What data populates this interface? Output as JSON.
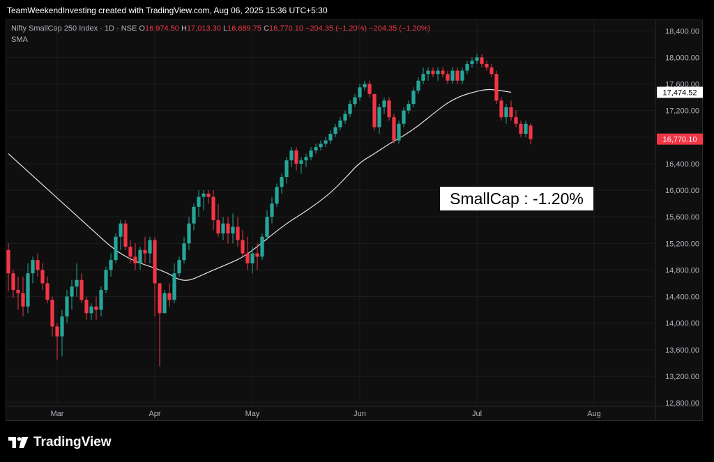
{
  "header": {
    "title": "TeamWeekendInvesting created with TradingView.com, Aug 06, 2025 15:36 UTC+5:30"
  },
  "legend": {
    "symbol": "Nifty SmallCap 250 Index · 1D · NSE",
    "open_label": "O",
    "open": "16,974.50",
    "high_label": "H",
    "high": "17,013.30",
    "low_label": "L",
    "low": "16,689.75",
    "close_label": "C",
    "close": "16,770.10",
    "change": "−204.35 (−1.20%)",
    "sma_change": "−204.35 (−1.20%)",
    "sma_label": "SMA"
  },
  "annotation": "SmallCap : -1.20%",
  "brand": "TradingView",
  "colors": {
    "up": "#26a69a",
    "down": "#f23645",
    "sma": "#e6e6e6",
    "background": "#0f0f0f"
  },
  "chart_data": {
    "type": "candlestick",
    "y_ticks": [
      "18,400.00",
      "18,000.00",
      "17,600.00",
      "17,200.00",
      "16,800.00",
      "16,400.00",
      "16,000.00",
      "15,600.00",
      "15,200.00",
      "14,800.00",
      "14,400.00",
      "14,000.00",
      "13,600.00",
      "13,200.00",
      "12,800.00"
    ],
    "y_tick_values": [
      18400,
      18000,
      17600,
      17200,
      16800,
      16400,
      16000,
      15600,
      15200,
      14800,
      14400,
      14000,
      13600,
      13200,
      12800
    ],
    "x_ticks": [
      "Mar",
      "Apr",
      "May",
      "Jun",
      "Jul",
      "Aug"
    ],
    "x_tick_index": [
      10,
      30,
      50,
      72,
      96,
      120
    ],
    "ylim": [
      12780,
      18560
    ],
    "sma_price_label": "17,474.52",
    "sma_price": 17474.52,
    "last_price_label": "16,770.10",
    "last_price": 16770.1,
    "candles": [
      [
        15100,
        15200,
        14480,
        14750
      ],
      [
        14750,
        14800,
        14380,
        14500
      ],
      [
        14500,
        14700,
        14200,
        14450
      ],
      [
        14450,
        14700,
        14100,
        14250
      ],
      [
        14250,
        14900,
        14150,
        14750
      ],
      [
        14750,
        15000,
        14600,
        14950
      ],
      [
        14950,
        15050,
        14700,
        14800
      ],
      [
        14800,
        14900,
        14500,
        14600
      ],
      [
        14600,
        14700,
        14300,
        14350
      ],
      [
        14350,
        14400,
        13800,
        13950
      ],
      [
        13950,
        14000,
        13450,
        13800
      ],
      [
        13800,
        14200,
        13500,
        14100
      ],
      [
        14100,
        14500,
        14000,
        14400
      ],
      [
        14400,
        14650,
        14200,
        14550
      ],
      [
        14550,
        14900,
        14400,
        14650
      ],
      [
        14650,
        14750,
        14300,
        14350
      ],
      [
        14350,
        14400,
        14050,
        14150
      ],
      [
        14150,
        14300,
        14050,
        14250
      ],
      [
        14250,
        14400,
        14050,
        14200
      ],
      [
        14200,
        14550,
        14100,
        14500
      ],
      [
        14500,
        14850,
        14450,
        14800
      ],
      [
        14800,
        15050,
        14700,
        14950
      ],
      [
        14950,
        15350,
        14900,
        15300
      ],
      [
        15300,
        15550,
        15100,
        15500
      ],
      [
        15500,
        15550,
        15100,
        15150
      ],
      [
        15150,
        15250,
        14900,
        15000
      ],
      [
        15000,
        15200,
        14800,
        14900
      ],
      [
        14900,
        15150,
        14800,
        15100
      ],
      [
        15100,
        15300,
        14900,
        15050
      ],
      [
        15050,
        15300,
        14900,
        15250
      ],
      [
        15250,
        15300,
        14100,
        14600
      ],
      [
        14600,
        14600,
        13350,
        14150
      ],
      [
        14150,
        14500,
        14200,
        14450
      ],
      [
        14450,
        14600,
        14250,
        14350
      ],
      [
        14350,
        14900,
        14300,
        14750
      ],
      [
        14750,
        15000,
        14700,
        14950
      ],
      [
        14950,
        15300,
        14900,
        15200
      ],
      [
        15200,
        15600,
        15100,
        15500
      ],
      [
        15500,
        15800,
        15400,
        15750
      ],
      [
        15750,
        16000,
        15600,
        15900
      ],
      [
        15900,
        16000,
        15700,
        15950
      ],
      [
        15950,
        16000,
        15800,
        15900
      ],
      [
        15900,
        16000,
        15400,
        15550
      ],
      [
        15550,
        15800,
        15300,
        15350
      ],
      [
        15350,
        15600,
        15250,
        15500
      ],
      [
        15500,
        15600,
        15200,
        15350
      ],
      [
        15350,
        15650,
        15200,
        15450
      ],
      [
        15450,
        15600,
        15150,
        15250
      ],
      [
        15250,
        15400,
        15000,
        15050
      ],
      [
        15050,
        15300,
        14800,
        14900
      ],
      [
        14900,
        15150,
        14750,
        15050
      ],
      [
        15050,
        15200,
        14800,
        15000
      ],
      [
        15000,
        15350,
        14950,
        15300
      ],
      [
        15300,
        15700,
        15250,
        15600
      ],
      [
        15600,
        15900,
        15500,
        15800
      ],
      [
        15800,
        16100,
        15750,
        16050
      ],
      [
        16050,
        16250,
        15950,
        16200
      ],
      [
        16200,
        16500,
        16100,
        16450
      ],
      [
        16450,
        16650,
        16350,
        16600
      ],
      [
        16600,
        16650,
        16300,
        16400
      ],
      [
        16400,
        16500,
        16250,
        16450
      ],
      [
        16450,
        16550,
        16350,
        16500
      ],
      [
        16500,
        16650,
        16450,
        16600
      ],
      [
        16600,
        16700,
        16550,
        16650
      ],
      [
        16650,
        16750,
        16600,
        16700
      ],
      [
        16700,
        16800,
        16650,
        16750
      ],
      [
        16750,
        16900,
        16700,
        16850
      ],
      [
        16850,
        17000,
        16800,
        16950
      ],
      [
        16950,
        17100,
        16900,
        17050
      ],
      [
        17050,
        17200,
        17000,
        17150
      ],
      [
        17150,
        17350,
        17100,
        17300
      ],
      [
        17300,
        17450,
        17250,
        17400
      ],
      [
        17400,
        17600,
        17350,
        17550
      ],
      [
        17550,
        17650,
        17500,
        17600
      ],
      [
        17600,
        17650,
        17400,
        17450
      ],
      [
        17450,
        17450,
        16900,
        16950
      ],
      [
        16950,
        17300,
        16850,
        17250
      ],
      [
        17250,
        17400,
        17150,
        17350
      ],
      [
        17350,
        17400,
        17050,
        17100
      ],
      [
        17100,
        17150,
        16700,
        16750
      ],
      [
        16750,
        17050,
        16700,
        17000
      ],
      [
        17000,
        17250,
        16950,
        17200
      ],
      [
        17200,
        17350,
        17150,
        17300
      ],
      [
        17300,
        17550,
        17250,
        17500
      ],
      [
        17500,
        17700,
        17450,
        17650
      ],
      [
        17650,
        17850,
        17600,
        17750
      ],
      [
        17750,
        17850,
        17650,
        17800
      ],
      [
        17800,
        17850,
        17700,
        17750
      ],
      [
        17750,
        17850,
        17650,
        17800
      ],
      [
        17800,
        17850,
        17700,
        17750
      ],
      [
        17750,
        17800,
        17600,
        17650
      ],
      [
        17650,
        17850,
        17600,
        17800
      ],
      [
        17800,
        17850,
        17600,
        17650
      ],
      [
        17650,
        17850,
        17600,
        17800
      ],
      [
        17800,
        17950,
        17750,
        17900
      ],
      [
        17900,
        18000,
        17850,
        17950
      ],
      [
        17950,
        18050,
        17900,
        18000
      ],
      [
        18000,
        18050,
        17850,
        17900
      ],
      [
        17900,
        17950,
        17800,
        17850
      ],
      [
        17850,
        17900,
        17700,
        17750
      ],
      [
        17750,
        17800,
        17300,
        17350
      ],
      [
        17350,
        17400,
        17050,
        17100
      ],
      [
        17100,
        17300,
        17000,
        17250
      ],
      [
        17250,
        17350,
        17050,
        17100
      ],
      [
        17100,
        17200,
        16950,
        17000
      ],
      [
        17000,
        17050,
        16800,
        16850
      ],
      [
        16850,
        17050,
        16800,
        17000
      ],
      [
        16974.5,
        17013.3,
        16689.75,
        16770.1
      ]
    ],
    "sma": [
      [
        0,
        16550
      ],
      [
        3,
        16350
      ],
      [
        6,
        16150
      ],
      [
        9,
        15950
      ],
      [
        12,
        15750
      ],
      [
        15,
        15550
      ],
      [
        18,
        15350
      ],
      [
        21,
        15150
      ],
      [
        24,
        15000
      ],
      [
        27,
        14900
      ],
      [
        30,
        14830
      ],
      [
        33,
        14740
      ],
      [
        35,
        14650
      ],
      [
        37,
        14640
      ],
      [
        39,
        14700
      ],
      [
        42,
        14800
      ],
      [
        45,
        14890
      ],
      [
        48,
        14990
      ],
      [
        51,
        15150
      ],
      [
        54,
        15330
      ],
      [
        57,
        15500
      ],
      [
        60,
        15640
      ],
      [
        63,
        15790
      ],
      [
        66,
        15960
      ],
      [
        69,
        16180
      ],
      [
        72,
        16420
      ],
      [
        75,
        16550
      ],
      [
        78,
        16700
      ],
      [
        81,
        16820
      ],
      [
        84,
        16970
      ],
      [
        87,
        17150
      ],
      [
        90,
        17320
      ],
      [
        93,
        17430
      ],
      [
        96,
        17490
      ],
      [
        98,
        17520
      ],
      [
        100,
        17510
      ],
      [
        103,
        17475
      ]
    ]
  }
}
